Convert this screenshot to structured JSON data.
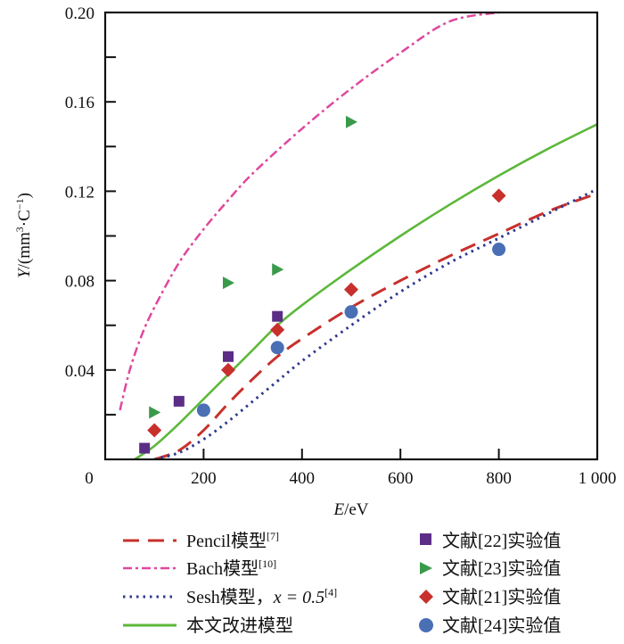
{
  "chart_data": {
    "type": "line",
    "xlabel_italic": "E",
    "xlabel_rest": "/eV",
    "ylabel_italic": "Y",
    "ylabel_rest": "/(mm",
    "ylabel_sup": "3",
    "ylabel_tail": "·C",
    "ylabel_sup2": "−1",
    "ylabel_close": ")",
    "xlim": [
      0,
      1000
    ],
    "ylim": [
      0,
      0.2
    ],
    "x_ticks": [
      0,
      200,
      400,
      600,
      800,
      1000
    ],
    "x_tick_labels": [
      "0",
      "200",
      "400",
      "600",
      "800",
      "1 000"
    ],
    "y_ticks": [
      0.04,
      0.08,
      0.12,
      0.16,
      0.2
    ],
    "y_tick_labels": [
      "0.04",
      "0.08",
      "0.12",
      "0.16",
      "0.20"
    ],
    "y_minor_ticks": [
      0.02,
      0.06,
      0.1,
      0.14,
      0.18
    ],
    "x_origin_label": "0",
    "grid": false,
    "legend_position": "bottom",
    "series": [
      {
        "name": "Pencil模型",
        "ref": "[7]",
        "kind": "line",
        "style": "dashed",
        "color": "#c8302c",
        "x": [
          100,
          150,
          200,
          250,
          300,
          350,
          400,
          500,
          600,
          700,
          800,
          900,
          1000
        ],
        "y": [
          0.0,
          0.004,
          0.013,
          0.025,
          0.036,
          0.046,
          0.054,
          0.068,
          0.08,
          0.091,
          0.101,
          0.111,
          0.119
        ]
      },
      {
        "name": "Bach模型",
        "ref": "[10]",
        "kind": "line",
        "style": "dashdot",
        "color": "#e0479e",
        "x": [
          30,
          50,
          75,
          100,
          150,
          200,
          250,
          300,
          400,
          500,
          600,
          700,
          800
        ],
        "y": [
          0.022,
          0.04,
          0.056,
          0.068,
          0.088,
          0.103,
          0.116,
          0.128,
          0.148,
          0.166,
          0.182,
          0.196,
          0.2
        ]
      },
      {
        "name": "Sesh模型，",
        "name_math": "x = 0.5",
        "ref": "[4]",
        "kind": "line",
        "style": "dotted",
        "color": "#2e3a8c",
        "x": [
          100,
          150,
          200,
          250,
          300,
          350,
          400,
          500,
          600,
          700,
          800,
          900,
          1000
        ],
        "y": [
          0.0,
          0.003,
          0.009,
          0.017,
          0.026,
          0.035,
          0.044,
          0.06,
          0.075,
          0.088,
          0.099,
          0.11,
          0.121
        ]
      },
      {
        "name": "本文改进模型",
        "ref": "",
        "kind": "line",
        "style": "solid",
        "color": "#5cb83a",
        "x": [
          60,
          100,
          150,
          200,
          250,
          300,
          350,
          400,
          500,
          600,
          700,
          800,
          900,
          1000
        ],
        "y": [
          0.0,
          0.006,
          0.016,
          0.027,
          0.038,
          0.049,
          0.06,
          0.069,
          0.085,
          0.1,
          0.114,
          0.127,
          0.139,
          0.15
        ]
      },
      {
        "name": "文献[22]实验值",
        "kind": "scatter",
        "marker": "square",
        "color": "#5b2d86",
        "x": [
          80,
          150,
          250,
          350
        ],
        "y": [
          0.005,
          0.026,
          0.046,
          0.064
        ]
      },
      {
        "name": "文献[23]实验值",
        "kind": "scatter",
        "marker": "triangle-right",
        "color": "#3a9a4a",
        "x": [
          100,
          250,
          350,
          500
        ],
        "y": [
          0.021,
          0.079,
          0.085,
          0.151
        ]
      },
      {
        "name": "文献[21]实验值",
        "kind": "scatter",
        "marker": "diamond",
        "color": "#c8302c",
        "x": [
          100,
          250,
          350,
          500,
          800
        ],
        "y": [
          0.013,
          0.04,
          0.058,
          0.076,
          0.118
        ]
      },
      {
        "name": "文献[24]实验值",
        "kind": "scatter",
        "marker": "circle",
        "color": "#4a6fb5",
        "x": [
          200,
          350,
          500,
          800
        ],
        "y": [
          0.022,
          0.05,
          0.066,
          0.094
        ]
      }
    ]
  }
}
